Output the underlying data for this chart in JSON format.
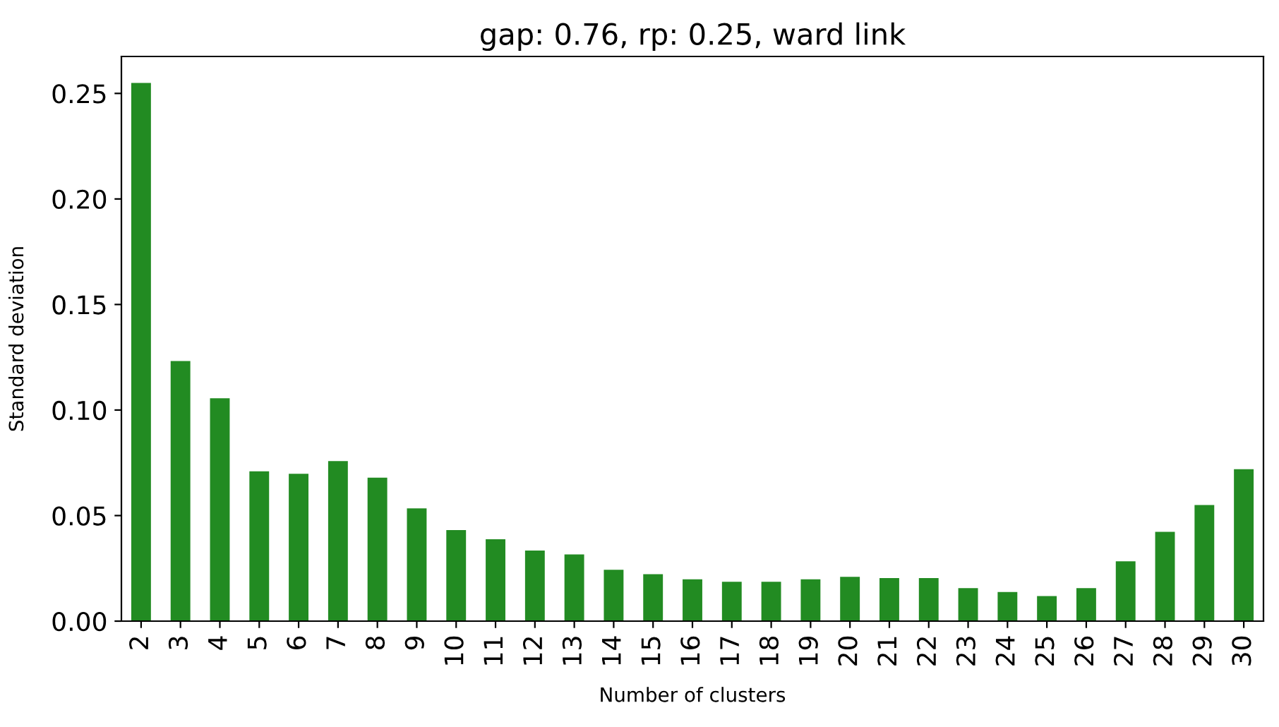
{
  "chart_data": {
    "type": "bar",
    "title": "gap: 0.76, rp: 0.25, ward link",
    "xlabel": "Number of clusters",
    "ylabel": "Standard deviation",
    "categories": [
      "2",
      "3",
      "4",
      "5",
      "6",
      "7",
      "8",
      "9",
      "10",
      "11",
      "12",
      "13",
      "14",
      "15",
      "16",
      "17",
      "18",
      "19",
      "20",
      "21",
      "22",
      "23",
      "24",
      "25",
      "26",
      "27",
      "28",
      "29",
      "30"
    ],
    "values": [
      0.255,
      0.1232,
      0.1056,
      0.071,
      0.0698,
      0.0758,
      0.068,
      0.0534,
      0.0431,
      0.0388,
      0.0334,
      0.0316,
      0.0243,
      0.0222,
      0.0198,
      0.0186,
      0.0186,
      0.0198,
      0.021,
      0.0204,
      0.0204,
      0.0156,
      0.0138,
      0.0119,
      0.0156,
      0.0283,
      0.0423,
      0.055,
      0.072
    ],
    "color": "#228b22",
    "ylim": [
      0,
      0.2675
    ],
    "yticks": [
      {
        "value": 0,
        "label": "0.00"
      },
      0.05,
      {
        "value": 0.1,
        "label": "0.10"
      },
      0.15,
      {
        "value": 0.2,
        "label": "0.20"
      },
      0.25
    ],
    "grid": false,
    "legend": false
  }
}
